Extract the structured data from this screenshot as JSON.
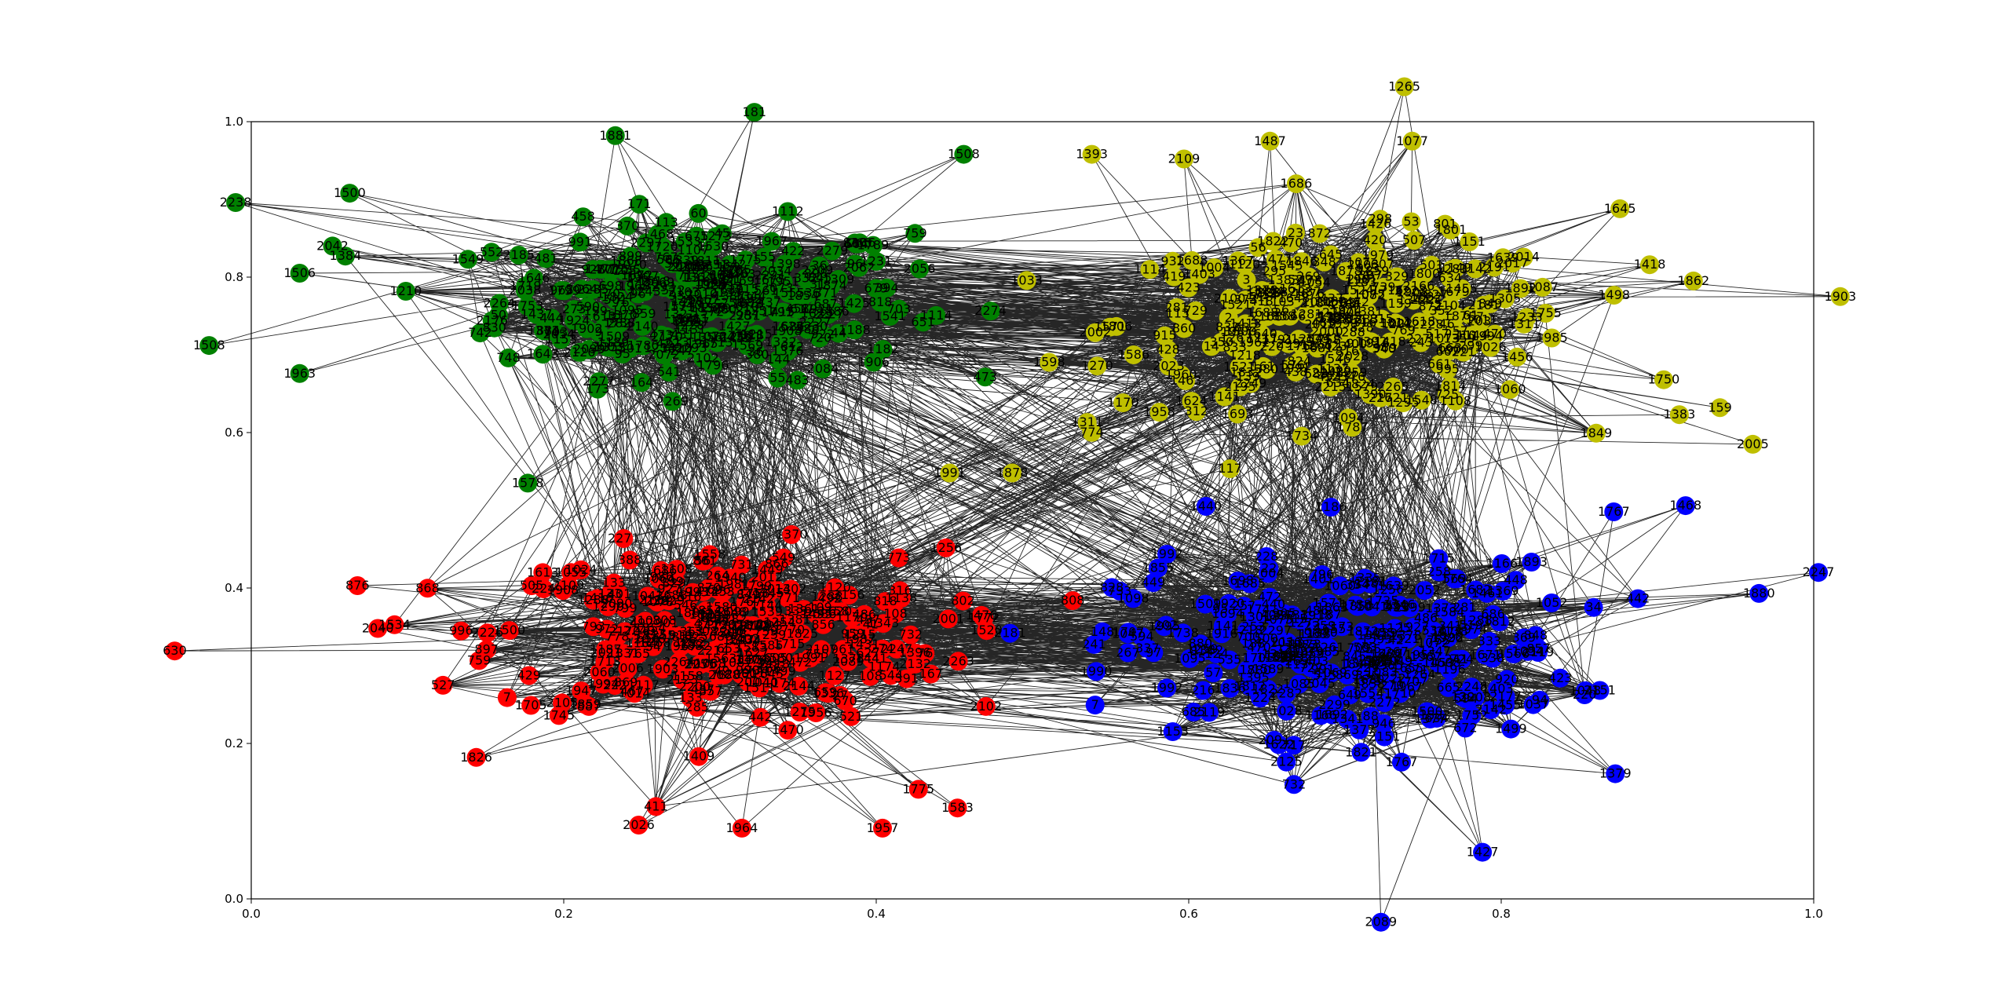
{
  "chart_data": {
    "type": "scatter",
    "title": "",
    "xlabel": "",
    "ylabel": "",
    "xlim": [
      0.0,
      1.0
    ],
    "ylim": [
      0.0,
      1.0
    ],
    "grid": false,
    "legend": "none",
    "x_ticks": [
      "0.0",
      "0.2",
      "0.4",
      "0.6",
      "0.8",
      "1.0"
    ],
    "y_ticks": [
      "0.0",
      "0.2",
      "0.4",
      "0.6",
      "0.8",
      "1.0"
    ],
    "edge_color": "#000000",
    "clusters": [
      {
        "color": "#008000",
        "center": [
          0.29,
          0.77
        ],
        "spread": [
          0.12,
          0.09
        ],
        "count": 260
      },
      {
        "color": "#bfbf00",
        "center": [
          0.7,
          0.74
        ],
        "spread": [
          0.13,
          0.1
        ],
        "count": 260
      },
      {
        "color": "#ff0000",
        "center": [
          0.3,
          0.34
        ],
        "spread": [
          0.13,
          0.1
        ],
        "count": 260
      },
      {
        "color": "#0000ff",
        "center": [
          0.7,
          0.32
        ],
        "spread": [
          0.13,
          0.1
        ],
        "count": 260
      }
    ],
    "labeled_nodes": [
      {
        "label": "1265",
        "x": 0.738,
        "y": 1.045,
        "color": "#bfbf00"
      },
      {
        "label": "1077",
        "x": 0.743,
        "y": 0.975,
        "color": "#bfbf00"
      },
      {
        "label": "1487",
        "x": 0.652,
        "y": 0.975,
        "color": "#bfbf00"
      },
      {
        "label": "1393",
        "x": 0.538,
        "y": 0.958,
        "color": "#bfbf00"
      },
      {
        "label": "2109",
        "x": 0.597,
        "y": 0.952,
        "color": "#bfbf00"
      },
      {
        "label": "1862",
        "x": 0.923,
        "y": 0.795,
        "color": "#bfbf00"
      },
      {
        "label": "1903",
        "x": 1.017,
        "y": 0.775,
        "color": "#bfbf00"
      },
      {
        "label": "1645",
        "x": 0.876,
        "y": 0.888,
        "color": "#bfbf00"
      },
      {
        "label": "1418",
        "x": 0.895,
        "y": 0.816,
        "color": "#bfbf00"
      },
      {
        "label": "1750",
        "x": 0.904,
        "y": 0.668,
        "color": "#bfbf00"
      },
      {
        "label": "2005",
        "x": 0.961,
        "y": 0.585,
        "color": "#bfbf00"
      },
      {
        "label": "159",
        "x": 0.94,
        "y": 0.632,
        "color": "#bfbf00"
      },
      {
        "label": "1383",
        "x": 0.914,
        "y": 0.623,
        "color": "#bfbf00"
      },
      {
        "label": "1991",
        "x": 0.447,
        "y": 0.548,
        "color": "#bfbf00"
      },
      {
        "label": "1878",
        "x": 0.487,
        "y": 0.548,
        "color": "#bfbf00"
      },
      {
        "label": "1311",
        "x": 0.535,
        "y": 0.613,
        "color": "#bfbf00"
      },
      {
        "label": "1508",
        "x": 0.456,
        "y": 0.958,
        "color": "#008000"
      },
      {
        "label": "181",
        "x": 0.322,
        "y": 1.012,
        "color": "#008000"
      },
      {
        "label": "1881",
        "x": 0.233,
        "y": 0.982,
        "color": "#008000"
      },
      {
        "label": "1500",
        "x": 0.063,
        "y": 0.908,
        "color": "#008000"
      },
      {
        "label": "2238",
        "x": -0.01,
        "y": 0.896,
        "color": "#008000"
      },
      {
        "label": "2042",
        "x": 0.052,
        "y": 0.84,
        "color": "#008000"
      },
      {
        "label": "1506",
        "x": 0.031,
        "y": 0.805,
        "color": "#008000"
      },
      {
        "label": "1508",
        "x": -0.027,
        "y": 0.712,
        "color": "#008000"
      },
      {
        "label": "1963",
        "x": 0.031,
        "y": 0.676,
        "color": "#008000"
      },
      {
        "label": "1578",
        "x": 0.177,
        "y": 0.535,
        "color": "#008000"
      },
      {
        "label": "630",
        "x": -0.049,
        "y": 0.319,
        "color": "#ff0000"
      },
      {
        "label": "876",
        "x": 0.068,
        "y": 0.403,
        "color": "#ff0000"
      },
      {
        "label": "2040",
        "x": 0.081,
        "y": 0.348,
        "color": "#ff0000"
      },
      {
        "label": "1826",
        "x": 0.144,
        "y": 0.182,
        "color": "#ff0000"
      },
      {
        "label": "2026",
        "x": 0.248,
        "y": 0.095,
        "color": "#ff0000"
      },
      {
        "label": "1964",
        "x": 0.314,
        "y": 0.091,
        "color": "#ff0000"
      },
      {
        "label": "1957",
        "x": 0.404,
        "y": 0.091,
        "color": "#ff0000"
      },
      {
        "label": "1583",
        "x": 0.452,
        "y": 0.117,
        "color": "#ff0000"
      },
      {
        "label": "1775",
        "x": 0.427,
        "y": 0.141,
        "color": "#ff0000"
      },
      {
        "label": "1880",
        "x": 0.965,
        "y": 0.393,
        "color": "#0000ff"
      },
      {
        "label": "2247",
        "x": 1.003,
        "y": 0.42,
        "color": "#0000ff"
      },
      {
        "label": "1468",
        "x": 0.918,
        "y": 0.506,
        "color": "#0000ff"
      },
      {
        "label": "1767",
        "x": 0.872,
        "y": 0.498,
        "color": "#0000ff"
      },
      {
        "label": "1379",
        "x": 0.873,
        "y": 0.161,
        "color": "#0000ff"
      },
      {
        "label": "1427",
        "x": 0.788,
        "y": 0.06,
        "color": "#0000ff"
      },
      {
        "label": "2089",
        "x": 0.723,
        "y": -0.03,
        "color": "#0000ff"
      },
      {
        "label": "1440",
        "x": 0.611,
        "y": 0.505,
        "color": "#0000ff"
      },
      {
        "label": "1186",
        "x": 0.691,
        "y": 0.504,
        "color": "#0000ff"
      }
    ]
  }
}
